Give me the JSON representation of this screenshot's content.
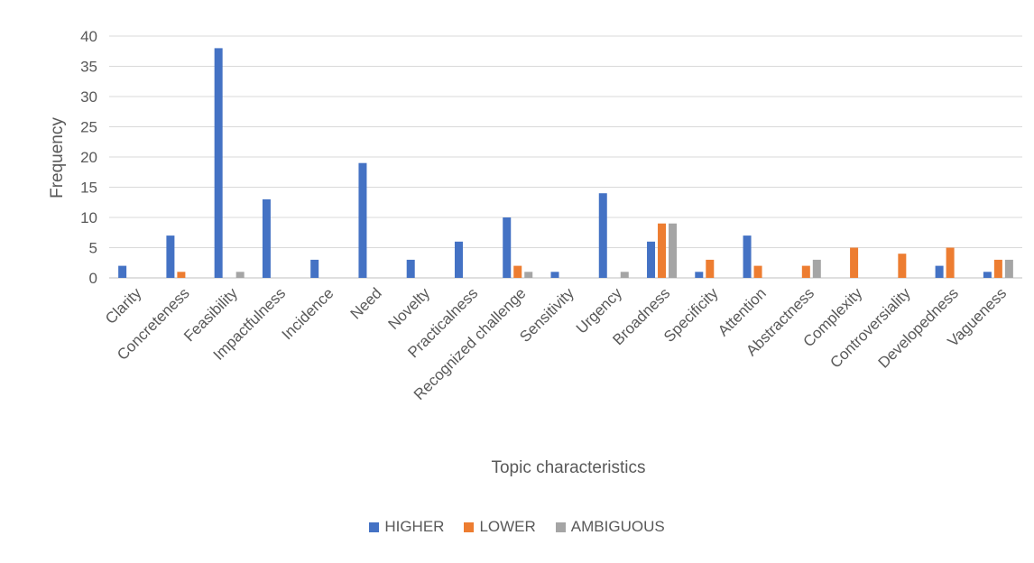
{
  "chart_data": {
    "type": "bar",
    "title": "",
    "xlabel": "Topic characteristics",
    "ylabel": "Frequency",
    "ylim": [
      0,
      40
    ],
    "yticks": [
      "0",
      "5",
      "10",
      "15",
      "20",
      "25",
      "30",
      "35",
      "40"
    ],
    "grid": true,
    "legend_position": "bottom",
    "categories": [
      "Clarity",
      "Concreteness",
      "Feasibility",
      "Impactfulness",
      "Incidence",
      "Need",
      "Novelty",
      "Practicalness",
      "Recognized challenge",
      "Sensitivity",
      "Urgency",
      "Broadness",
      "Specificity",
      "Attention",
      "Abstractness",
      "Complexity",
      "Controversiality",
      "Developedness",
      "Vagueness"
    ],
    "series": [
      {
        "name": "HIGHER",
        "color": "#4472C4",
        "values": [
          2,
          7,
          38,
          13,
          3,
          19,
          3,
          6,
          10,
          1,
          14,
          6,
          1,
          7,
          0,
          0,
          0,
          2,
          1
        ]
      },
      {
        "name": "LOWER",
        "color": "#ED7D31",
        "values": [
          0,
          1,
          0,
          0,
          0,
          0,
          0,
          0,
          2,
          0,
          0,
          9,
          3,
          2,
          2,
          5,
          4,
          5,
          3
        ]
      },
      {
        "name": "AMBIGUOUS",
        "color": "#A5A5A5",
        "values": [
          0,
          0,
          1,
          0,
          0,
          0,
          0,
          0,
          1,
          0,
          1,
          9,
          0,
          0,
          3,
          0,
          0,
          0,
          3
        ]
      }
    ]
  }
}
